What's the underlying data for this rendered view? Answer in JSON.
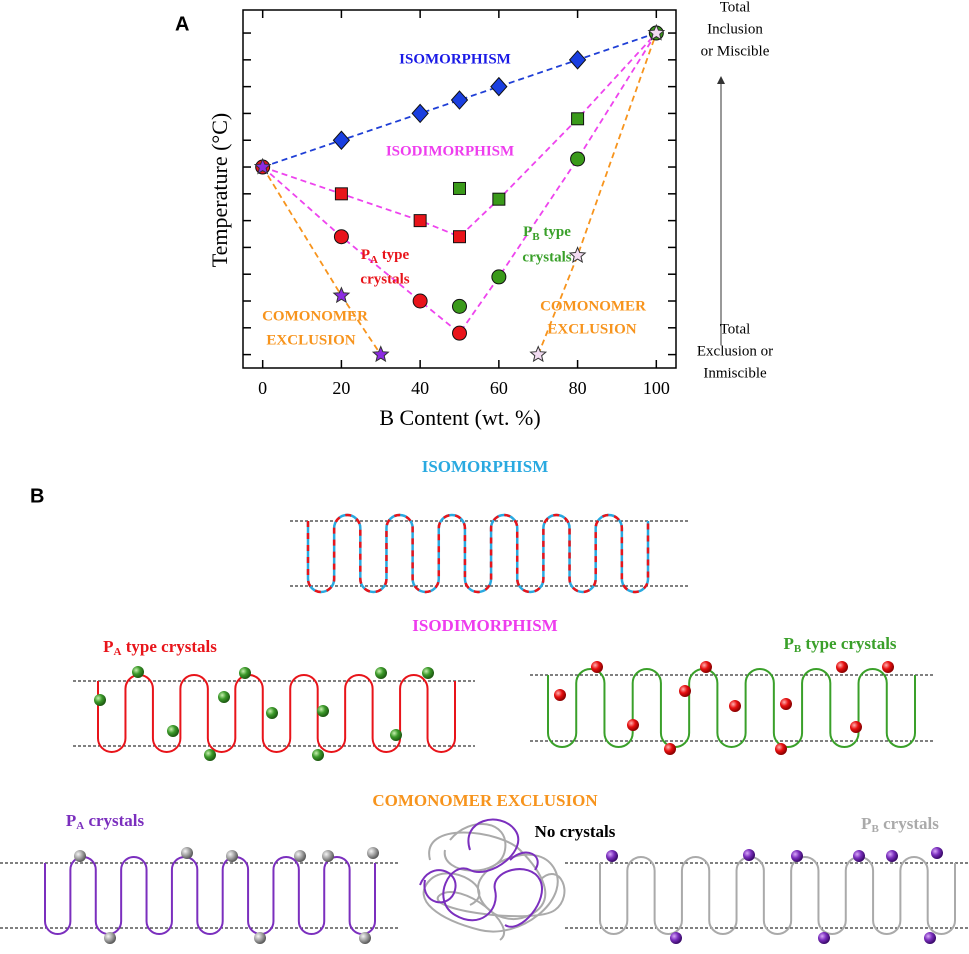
{
  "chart_data": {
    "type": "scatter",
    "panel_label": "A",
    "ylabel": "Temperature (°C)",
    "xlabel": "B Content (wt. %)",
    "xlim": [
      -5,
      105
    ],
    "xticks": [
      0,
      20,
      40,
      60,
      80,
      100
    ],
    "ylim": [
      0.25,
      6.93
    ],
    "yticks": [
      0.5,
      1,
      1.5,
      2,
      2.5,
      3,
      3.5,
      4,
      4.5,
      5,
      5.5,
      6,
      6.5
    ],
    "ytick_labels": false,
    "lines": [
      {
        "color": "#1f3fd6",
        "x": [
          0,
          20,
          40,
          50,
          60,
          80,
          100
        ],
        "values": [
          4,
          4.5,
          5,
          5.25,
          5.5,
          6,
          6.5
        ]
      },
      {
        "color": "#ee44ee",
        "x": [
          0,
          20,
          40,
          50,
          60,
          80,
          100
        ],
        "values": [
          4,
          3.5,
          3,
          2.7,
          3.4,
          4.9,
          6.5
        ]
      },
      {
        "color": "#ee44ee",
        "x": [
          0,
          20,
          40,
          50,
          60,
          80,
          100
        ],
        "values": [
          4,
          2.7,
          1.5,
          0.9,
          1.95,
          4.15,
          6.5
        ]
      },
      {
        "color": "#f7941d",
        "x": [
          0,
          20,
          30
        ],
        "values": [
          4,
          1.6,
          0.5
        ]
      },
      {
        "color": "#f7941d",
        "x": [
          70,
          80,
          100
        ],
        "values": [
          0.5,
          2.35,
          6.5
        ]
      }
    ],
    "series": [
      {
        "marker": "diamond",
        "color": "#1a3fe0",
        "x": [
          20,
          40,
          50,
          60,
          80
        ],
        "values": [
          4.5,
          5,
          5.25,
          5.5,
          6
        ]
      },
      {
        "marker": "square",
        "color": "#e8141a",
        "x": [
          20,
          40,
          50
        ],
        "values": [
          3.5,
          3,
          2.7
        ]
      },
      {
        "marker": "circle",
        "color": "#e8141a",
        "x": [
          0,
          20,
          40,
          50
        ],
        "values": [
          4,
          2.7,
          1.5,
          0.9
        ]
      },
      {
        "marker": "square",
        "color": "#3a9a1a",
        "x": [
          50,
          60,
          80
        ],
        "values": [
          3.6,
          3.4,
          4.9
        ]
      },
      {
        "marker": "circle",
        "color": "#3a9a1a",
        "x": [
          50,
          60,
          80,
          100
        ],
        "values": [
          1.4,
          1.95,
          4.15,
          6.5
        ]
      },
      {
        "marker": "star",
        "color": "#8b2be2",
        "x": [
          0,
          20,
          30
        ],
        "values": [
          4,
          1.6,
          0.5
        ]
      },
      {
        "marker": "star",
        "color": "#f2dcf2",
        "x": [
          70,
          80,
          100
        ],
        "values": [
          0.5,
          2.35,
          6.5
        ]
      }
    ],
    "annotations": {
      "isomorphism": "ISOMORPHISM",
      "isodimorphism": "ISODIMORPHISM",
      "pa": {
        "main": "P",
        "sub": "A",
        "rest": " type",
        "line2": "crystals"
      },
      "pb": {
        "main": "P",
        "sub": "B",
        "rest": " type",
        "line2": "crystals"
      },
      "exclusion_left": [
        "COMONOMER",
        "EXCLUSION"
      ],
      "exclusion_right": [
        "COMONOMER",
        "EXCLUSION"
      ]
    },
    "right_notes": {
      "top": [
        "Total",
        "Inclusion",
        "or Miscible"
      ],
      "bottom": [
        "Total",
        "Exclusion or",
        "Inmiscible"
      ]
    }
  },
  "panel_b": {
    "label": "B",
    "isomorphism": "ISOMORPHISM",
    "isodimorphism": "ISODIMORPHISM",
    "pa_type": {
      "main": "P",
      "sub": "A",
      "rest": " type crystals"
    },
    "pb_type": {
      "main": "P",
      "sub": "B",
      "rest": " type crystals"
    },
    "comonomer_exclusion": "COMONOMER EXCLUSION",
    "pa_crystals": {
      "main": "P",
      "sub": "A",
      "rest": " crystals"
    },
    "no_crystals": "No crystals",
    "pb_crystals": {
      "main": "P",
      "sub": "B",
      "rest": " crystals"
    }
  }
}
